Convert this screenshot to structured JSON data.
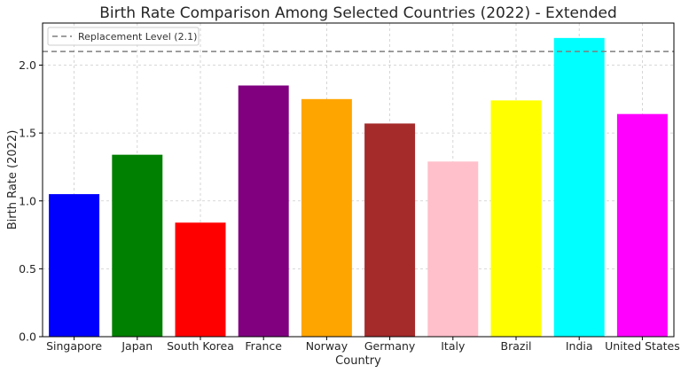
{
  "chart_data": {
    "type": "bar",
    "title": "Birth Rate Comparison Among Selected Countries (2022) - Extended",
    "xlabel": "Country",
    "ylabel": "Birth Rate (2022)",
    "categories": [
      "Singapore",
      "Japan",
      "South Korea",
      "France",
      "Norway",
      "Germany",
      "Italy",
      "Brazil",
      "India",
      "United States"
    ],
    "values": [
      1.05,
      1.34,
      0.84,
      1.85,
      1.75,
      1.57,
      1.29,
      1.74,
      2.2,
      1.64
    ],
    "colors": [
      "#0000ff",
      "#008000",
      "#ff0000",
      "#800080",
      "#ffa500",
      "#a52a2a",
      "#ffc0cb",
      "#ffff00",
      "#00ffff",
      "#ff00ff"
    ],
    "ylim": [
      0,
      2.31
    ],
    "yticks": [
      0.0,
      0.5,
      1.0,
      1.5,
      2.0
    ],
    "ytick_labels": [
      "0.0",
      "0.5",
      "1.0",
      "1.5",
      "2.0"
    ],
    "grid": true,
    "reference_line": {
      "value": 2.1,
      "label": "Replacement Level (2.1)",
      "color": "#7f7f7f"
    },
    "legend_position": "top-left"
  }
}
